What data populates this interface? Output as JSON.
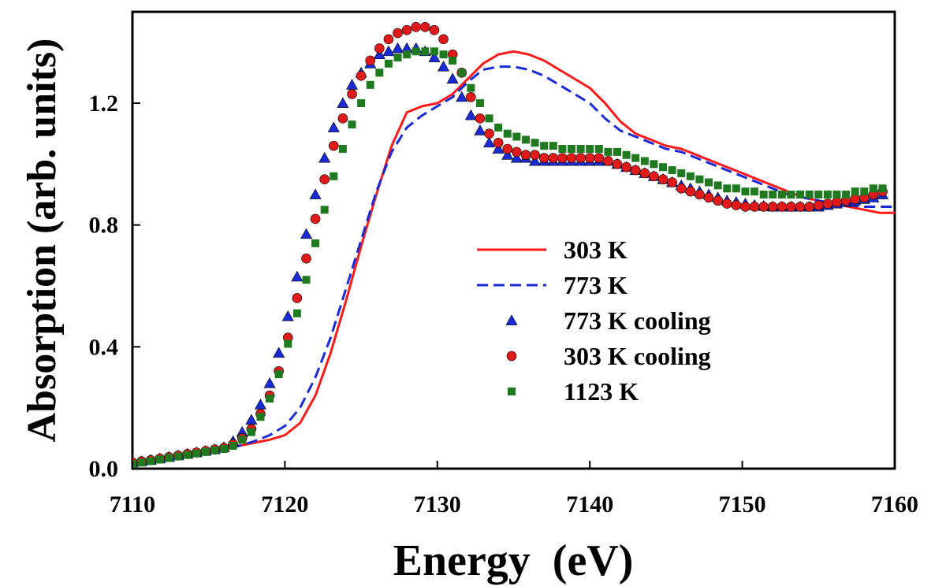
{
  "chart_data": {
    "type": "line",
    "xlabel": "Energy  (eV)",
    "ylabel": "Absorption (arb. units)",
    "xlim": [
      7110,
      7160
    ],
    "ylim": [
      0,
      1.5
    ],
    "xticks": [
      7110,
      7120,
      7130,
      7140,
      7150,
      7160
    ],
    "xtick_labels": [
      "7110",
      "7120",
      "7130",
      "7140",
      "7150",
      "7160"
    ],
    "yticks": [
      0,
      0.4,
      0.8,
      1.2
    ],
    "ytick_labels": [
      "0.0",
      "0.4",
      "0.8",
      "1.2"
    ],
    "grid": false,
    "legend_position": "center-right",
    "series": [
      {
        "name": "303 K",
        "style": "line-solid",
        "color": "#ff1a1a",
        "x": [
          7110,
          7112,
          7114,
          7116,
          7117,
          7118,
          7119,
          7120,
          7121,
          7122,
          7123,
          7124,
          7125,
          7126,
          7127,
          7128,
          7129,
          7130,
          7131,
          7132,
          7133,
          7134,
          7135,
          7136,
          7137,
          7138,
          7139,
          7140,
          7141,
          7142,
          7143,
          7144,
          7145,
          7146,
          7147,
          7148,
          7149,
          7150,
          7151,
          7152,
          7153,
          7154,
          7155,
          7156,
          7157,
          7158,
          7159,
          7160
        ],
        "y": [
          0.02,
          0.035,
          0.05,
          0.065,
          0.075,
          0.085,
          0.095,
          0.11,
          0.15,
          0.24,
          0.38,
          0.55,
          0.73,
          0.9,
          1.06,
          1.17,
          1.19,
          1.2,
          1.23,
          1.28,
          1.33,
          1.36,
          1.37,
          1.36,
          1.34,
          1.31,
          1.28,
          1.25,
          1.2,
          1.14,
          1.1,
          1.08,
          1.06,
          1.05,
          1.03,
          1.01,
          0.99,
          0.97,
          0.95,
          0.93,
          0.91,
          0.89,
          0.88,
          0.87,
          0.86,
          0.85,
          0.84,
          0.84
        ]
      },
      {
        "name": "773 K",
        "style": "line-dashed",
        "color": "#1a2bd6",
        "x": [
          7110,
          7112,
          7114,
          7116,
          7117,
          7118,
          7119,
          7120,
          7121,
          7122,
          7123,
          7124,
          7125,
          7126,
          7127,
          7128,
          7129,
          7130,
          7131,
          7132,
          7133,
          7134,
          7135,
          7136,
          7137,
          7138,
          7139,
          7140,
          7141,
          7142,
          7143,
          7144,
          7145,
          7146,
          7147,
          7148,
          7149,
          7150,
          7151,
          7152,
          7153,
          7154,
          7155,
          7156,
          7157,
          7158,
          7159,
          7160
        ],
        "y": [
          0.02,
          0.035,
          0.05,
          0.065,
          0.075,
          0.09,
          0.11,
          0.14,
          0.2,
          0.3,
          0.43,
          0.59,
          0.75,
          0.91,
          1.04,
          1.12,
          1.16,
          1.19,
          1.22,
          1.27,
          1.31,
          1.32,
          1.32,
          1.31,
          1.29,
          1.26,
          1.23,
          1.2,
          1.15,
          1.11,
          1.09,
          1.07,
          1.05,
          1.04,
          1.02,
          1.0,
          0.98,
          0.96,
          0.94,
          0.92,
          0.9,
          0.89,
          0.88,
          0.87,
          0.865,
          0.86,
          0.86,
          0.86
        ]
      },
      {
        "name": "773 K cooling",
        "style": "marker-triangle",
        "color": "#1a2bd6",
        "x": [
          7110,
          7110.6,
          7111.2,
          7111.8,
          7112.4,
          7113,
          7113.6,
          7114.2,
          7114.8,
          7115.4,
          7116,
          7116.6,
          7117.2,
          7117.8,
          7118.4,
          7119,
          7119.6,
          7120.2,
          7120.8,
          7121.4,
          7122,
          7122.6,
          7123.2,
          7123.8,
          7124.4,
          7125,
          7125.6,
          7126.2,
          7126.8,
          7127.4,
          7128,
          7128.6,
          7129.2,
          7129.8,
          7130.4,
          7131,
          7131.6,
          7132.2,
          7132.8,
          7133.4,
          7134,
          7134.6,
          7135.2,
          7135.8,
          7136.4,
          7137,
          7137.6,
          7138.2,
          7138.8,
          7139.4,
          7140,
          7140.6,
          7141.2,
          7141.8,
          7142.4,
          7143,
          7143.6,
          7144.2,
          7144.8,
          7145.4,
          7146,
          7146.6,
          7147.2,
          7147.8,
          7148.4,
          7149,
          7149.6,
          7150.2,
          7150.8,
          7151.4,
          7152,
          7152.6,
          7153.2,
          7153.8,
          7154.4,
          7155,
          7155.6,
          7156.2,
          7156.8,
          7157.4,
          7158,
          7158.6,
          7159.2
        ],
        "y": [
          0.02,
          0.024,
          0.028,
          0.033,
          0.038,
          0.043,
          0.048,
          0.053,
          0.058,
          0.063,
          0.07,
          0.09,
          0.12,
          0.16,
          0.21,
          0.28,
          0.38,
          0.5,
          0.63,
          0.77,
          0.9,
          1.02,
          1.12,
          1.2,
          1.26,
          1.3,
          1.33,
          1.36,
          1.37,
          1.38,
          1.38,
          1.38,
          1.37,
          1.35,
          1.32,
          1.28,
          1.22,
          1.16,
          1.11,
          1.07,
          1.05,
          1.03,
          1.02,
          1.02,
          1.01,
          1.01,
          1.01,
          1.01,
          1.01,
          1.01,
          1.01,
          1.01,
          1.01,
          1.0,
          0.99,
          0.98,
          0.97,
          0.96,
          0.95,
          0.94,
          0.93,
          0.92,
          0.91,
          0.9,
          0.89,
          0.88,
          0.875,
          0.87,
          0.865,
          0.862,
          0.86,
          0.86,
          0.86,
          0.86,
          0.86,
          0.86,
          0.865,
          0.87,
          0.875,
          0.88,
          0.885,
          0.89,
          0.9
        ]
      },
      {
        "name": "303 K cooling",
        "style": "marker-circle",
        "color": "#e01a1a",
        "x": [
          7110,
          7110.6,
          7111.2,
          7111.8,
          7112.4,
          7113,
          7113.6,
          7114.2,
          7114.8,
          7115.4,
          7116,
          7116.6,
          7117.2,
          7117.8,
          7118.4,
          7119,
          7119.6,
          7120.2,
          7120.8,
          7121.4,
          7122,
          7122.6,
          7123.2,
          7123.8,
          7124.4,
          7125,
          7125.6,
          7126.2,
          7126.8,
          7127.4,
          7128,
          7128.6,
          7129.2,
          7129.8,
          7130.4,
          7131,
          7131.6,
          7132.2,
          7132.8,
          7133.4,
          7134,
          7134.6,
          7135.2,
          7135.8,
          7136.4,
          7137,
          7137.6,
          7138.2,
          7138.8,
          7139.4,
          7140,
          7140.6,
          7141.2,
          7141.8,
          7142.4,
          7143,
          7143.6,
          7144.2,
          7144.8,
          7145.4,
          7146,
          7146.6,
          7147.2,
          7147.8,
          7148.4,
          7149,
          7149.6,
          7150.2,
          7150.8,
          7151.4,
          7152,
          7152.6,
          7153.2,
          7153.8,
          7154.4,
          7155,
          7155.6,
          7156.2,
          7156.8,
          7157.4,
          7158,
          7158.6,
          7159.2
        ],
        "y": [
          0.02,
          0.024,
          0.028,
          0.033,
          0.038,
          0.043,
          0.048,
          0.053,
          0.058,
          0.063,
          0.068,
          0.08,
          0.1,
          0.13,
          0.18,
          0.24,
          0.32,
          0.43,
          0.56,
          0.69,
          0.82,
          0.95,
          1.06,
          1.15,
          1.23,
          1.29,
          1.34,
          1.38,
          1.41,
          1.43,
          1.44,
          1.45,
          1.45,
          1.44,
          1.41,
          1.36,
          1.3,
          1.22,
          1.15,
          1.1,
          1.07,
          1.05,
          1.04,
          1.03,
          1.03,
          1.02,
          1.02,
          1.02,
          1.02,
          1.02,
          1.02,
          1.02,
          1.01,
          1.0,
          0.99,
          0.98,
          0.97,
          0.96,
          0.95,
          0.94,
          0.92,
          0.91,
          0.9,
          0.89,
          0.88,
          0.87,
          0.865,
          0.86,
          0.86,
          0.86,
          0.86,
          0.86,
          0.86,
          0.86,
          0.86,
          0.865,
          0.87,
          0.875,
          0.88,
          0.885,
          0.89,
          0.9,
          0.91
        ]
      },
      {
        "name": "1123 K",
        "style": "marker-square",
        "color": "#1f7a1f",
        "x": [
          7110,
          7110.6,
          7111.2,
          7111.8,
          7112.4,
          7113,
          7113.6,
          7114.2,
          7114.8,
          7115.4,
          7116,
          7116.6,
          7117.2,
          7117.8,
          7118.4,
          7119,
          7119.6,
          7120.2,
          7120.8,
          7121.4,
          7122,
          7122.6,
          7123.2,
          7123.8,
          7124.4,
          7125,
          7125.6,
          7126.2,
          7126.8,
          7127.4,
          7128,
          7128.6,
          7129.2,
          7129.8,
          7130.4,
          7131,
          7131.6,
          7132.2,
          7132.8,
          7133.4,
          7134,
          7134.6,
          7135.2,
          7135.8,
          7136.4,
          7137,
          7137.6,
          7138.2,
          7138.8,
          7139.4,
          7140,
          7140.6,
          7141.2,
          7141.8,
          7142.4,
          7143,
          7143.6,
          7144.2,
          7144.8,
          7145.4,
          7146,
          7146.6,
          7147.2,
          7147.8,
          7148.4,
          7149,
          7149.6,
          7150.2,
          7150.8,
          7151.4,
          7152,
          7152.6,
          7153.2,
          7153.8,
          7154.4,
          7155,
          7155.6,
          7156.2,
          7156.8,
          7157.4,
          7158,
          7158.6,
          7159.2
        ],
        "y": [
          0.015,
          0.02,
          0.025,
          0.03,
          0.035,
          0.04,
          0.045,
          0.05,
          0.055,
          0.06,
          0.065,
          0.075,
          0.095,
          0.12,
          0.17,
          0.23,
          0.31,
          0.41,
          0.51,
          0.62,
          0.74,
          0.85,
          0.96,
          1.05,
          1.13,
          1.2,
          1.26,
          1.3,
          1.33,
          1.35,
          1.36,
          1.37,
          1.37,
          1.37,
          1.36,
          1.34,
          1.3,
          1.25,
          1.2,
          1.15,
          1.12,
          1.1,
          1.09,
          1.08,
          1.07,
          1.06,
          1.06,
          1.05,
          1.05,
          1.05,
          1.05,
          1.05,
          1.04,
          1.04,
          1.03,
          1.02,
          1.01,
          1.0,
          0.99,
          0.98,
          0.97,
          0.96,
          0.95,
          0.94,
          0.93,
          0.92,
          0.92,
          0.91,
          0.91,
          0.9,
          0.9,
          0.9,
          0.9,
          0.9,
          0.9,
          0.9,
          0.9,
          0.9,
          0.9,
          0.91,
          0.91,
          0.92,
          0.92
        ]
      }
    ]
  }
}
